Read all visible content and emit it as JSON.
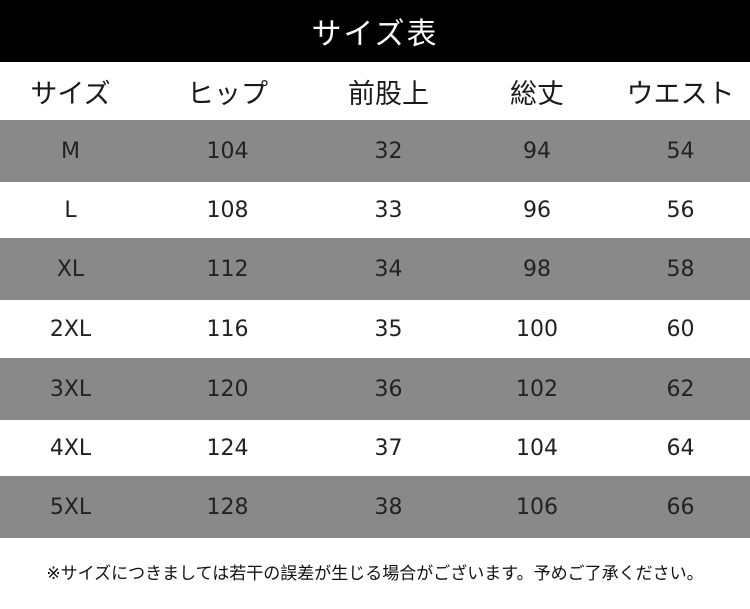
{
  "title": "サイズ表",
  "headers": [
    "サイズ",
    "ヒップ",
    "前股上",
    "総丈",
    "ウエスト"
  ],
  "rows": [
    [
      "M",
      "104",
      "32",
      "94",
      "54"
    ],
    [
      "L",
      "108",
      "33",
      "96",
      "56"
    ],
    [
      "XL",
      "112",
      "34",
      "98",
      "58"
    ],
    [
      "2XL",
      "116",
      "35",
      "100",
      "60"
    ],
    [
      "3XL",
      "120",
      "36",
      "102",
      "62"
    ],
    [
      "4XL",
      "124",
      "37",
      "104",
      "64"
    ],
    [
      "5XL",
      "128",
      "38",
      "106",
      "66"
    ]
  ],
  "note": "※サイズにつきましては若干の誤差が生じる場合がございます。予めご了承ください。",
  "colors": {
    "title_background": "#000000",
    "striped_row": "#898989",
    "plain_row": "#ffffff"
  }
}
